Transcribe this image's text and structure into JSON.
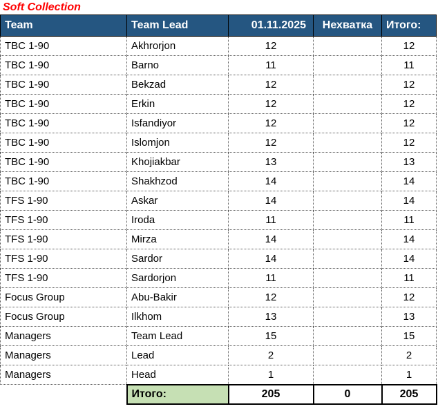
{
  "title": "Soft Collection",
  "colors": {
    "title_text": "#FF0000",
    "header_bg": "#255681",
    "header_text": "#FFFFFF",
    "total_label_bg": "#C6E0B4",
    "body_text": "#000000"
  },
  "table": {
    "headers": [
      "Team",
      "Team Lead",
      "01.11.2025",
      "Нехватка",
      "Итого:"
    ],
    "rows": [
      [
        "TBC 1-90",
        "Akhrorjon",
        "12",
        "",
        "12"
      ],
      [
        "TBC 1-90",
        "Barno",
        "11",
        "",
        "11"
      ],
      [
        "TBC 1-90",
        "Bekzad",
        "12",
        "",
        "12"
      ],
      [
        "TBC 1-90",
        "Erkin",
        "12",
        "",
        "12"
      ],
      [
        "TBC 1-90",
        "Isfandiyor",
        "12",
        "",
        "12"
      ],
      [
        "TBC 1-90",
        "Islomjon",
        "12",
        "",
        "12"
      ],
      [
        "TBC 1-90",
        "Khojiakbar",
        "13",
        "",
        "13"
      ],
      [
        "TBC 1-90",
        "Shakhzod",
        "14",
        "",
        "14"
      ],
      [
        "TFS 1-90",
        "Askar",
        "14",
        "",
        "14"
      ],
      [
        "TFS 1-90",
        "Iroda",
        "11",
        "",
        "11"
      ],
      [
        "TFS 1-90",
        "Mirza",
        "14",
        "",
        "14"
      ],
      [
        "TFS 1-90",
        "Sardor",
        "14",
        "",
        "14"
      ],
      [
        "TFS 1-90",
        "Sardorjon",
        "11",
        "",
        "11"
      ],
      [
        "Focus Group",
        "Abu-Bakir",
        "12",
        "",
        "12"
      ],
      [
        "Focus Group",
        "Ilkhom",
        "13",
        "",
        "13"
      ],
      [
        "Managers",
        "Team Lead",
        "15",
        "",
        "15"
      ],
      [
        "Managers",
        "Lead",
        "2",
        "",
        "2"
      ],
      [
        "Managers",
        "Head",
        "1",
        "",
        "1"
      ]
    ],
    "footer": {
      "label": "Итого:",
      "count": "205",
      "shortage": "0",
      "total": "205"
    }
  }
}
